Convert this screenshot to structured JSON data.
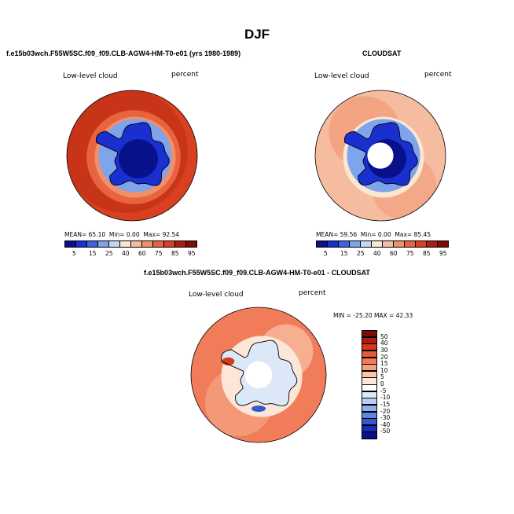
{
  "page": {
    "title": "DJF"
  },
  "panels": [
    {
      "title": "f.e15b03wch.F55W5SC.f09_f09.CLB-AGW4-HM-T0-e01 (yrs 1980-1989)",
      "variable": "Low-level cloud",
      "units": "percent",
      "stats": {
        "mean_label": "MEAN=",
        "mean": "65.10",
        "min_label": "Min=",
        "min": "0.00",
        "max_label": "Max=",
        "max": "92.54"
      },
      "colorbar": {
        "labels": [
          "5",
          "15",
          "25",
          "40",
          "60",
          "75",
          "85",
          "95"
        ],
        "colors": [
          "#08108a",
          "#1a2fd0",
          "#3f62e0",
          "#7ea4ec",
          "#c3d6f4",
          "#fbe6d4",
          "#f6bca0",
          "#f0906a",
          "#e8643e",
          "#d8401f",
          "#ad1c10",
          "#7e0c06"
        ]
      },
      "style": "model"
    },
    {
      "title": "CLOUDSAT",
      "variable": "Low-level cloud",
      "units": "percent",
      "stats": {
        "mean_label": "MEAN=",
        "mean": "59.56",
        "min_label": "Min=",
        "min": "0.00",
        "max_label": "Max=",
        "max": "85.45"
      },
      "colorbar": {
        "labels": [
          "5",
          "15",
          "25",
          "40",
          "60",
          "75",
          "85",
          "95"
        ],
        "colors": [
          "#08108a",
          "#1a2fd0",
          "#3f62e0",
          "#7ea4ec",
          "#c3d6f4",
          "#fbe6d4",
          "#f6bca0",
          "#f0906a",
          "#e8643e",
          "#d8401f",
          "#ad1c10",
          "#7e0c06"
        ]
      },
      "style": "obs"
    },
    {
      "title": "f.e15b03wch.F55W5SC.f09_f09.CLB-AGW4-HM-T0-e01 - CLOUDSAT",
      "variable": "Low-level cloud",
      "units": "percent",
      "stats": {
        "min_label": "MIN =",
        "min": "-25.20",
        "max_label": "MAX =",
        "max": "42.33"
      },
      "colorbar": {
        "labels": [
          "50",
          "40",
          "30",
          "20",
          "15",
          "10",
          "5",
          "0",
          "-5",
          "-10",
          "-15",
          "-20",
          "-30",
          "-40",
          "-50"
        ],
        "colors": [
          "#7e0c06",
          "#b01c10",
          "#d63a1c",
          "#e8583a",
          "#f07c5a",
          "#f4a080",
          "#f9c4aa",
          "#fce6d8",
          "#ffffff",
          "#dce8f8",
          "#b8cff2",
          "#90b0ea",
          "#5f86e0",
          "#3458d0",
          "#1a2cb8",
          "#08108a"
        ]
      },
      "style": "diff"
    }
  ]
}
